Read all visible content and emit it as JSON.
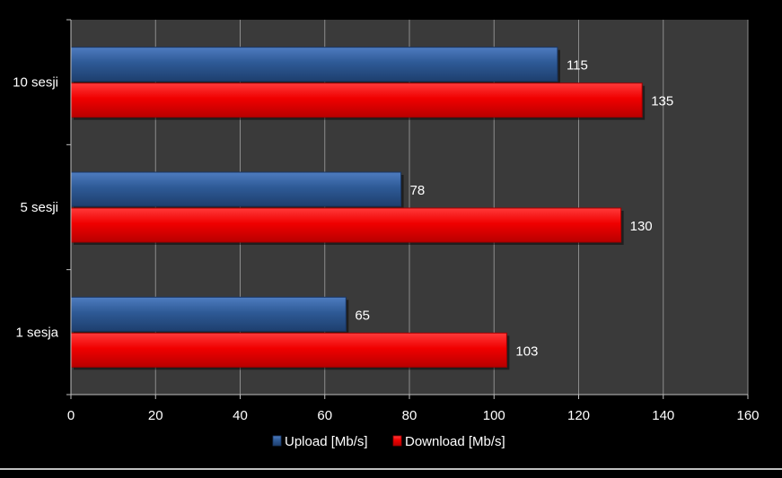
{
  "chart_data": {
    "type": "bar",
    "orientation": "horizontal",
    "categories": [
      "10 sesji",
      "5 sesji",
      "1 sesja"
    ],
    "series": [
      {
        "name": "Upload [Mb/s]",
        "values": [
          115,
          78,
          65
        ],
        "color": "#2E5A96"
      },
      {
        "name": "Download [Mb/s]",
        "values": [
          135,
          130,
          103
        ],
        "color": "#FF0000"
      }
    ],
    "xlim": [
      0,
      160
    ],
    "x_ticks": [
      0,
      20,
      40,
      60,
      80,
      100,
      120,
      140,
      160
    ],
    "grid": true,
    "legend_position": "bottom",
    "background_color": "#000000",
    "plot_background_color": "#3A3A3A",
    "text_color": "#FFFFFF",
    "data_labels": true
  }
}
